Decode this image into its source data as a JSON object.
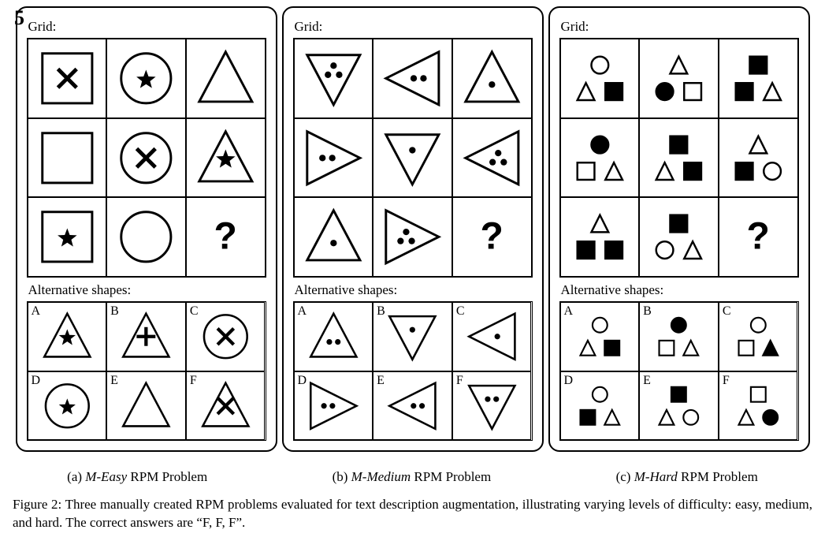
{
  "page_number": "5",
  "stroke_color": "#000000",
  "fill_color_shape": "none",
  "star_fill": "#000000",
  "dot_fill": "#000000",
  "stroke_width": 2,
  "labels": {
    "grid": "Grid:",
    "alternatives": "Alternative shapes:",
    "question_mark": "?"
  },
  "subcaptions": {
    "a": "(a)",
    "a_italic": "M-Easy",
    "a_rest": " RPM Problem",
    "b": "(b)",
    "b_italic": "M-Medium",
    "b_rest": " RPM Problem",
    "c": "(c)",
    "c_italic": "M-Hard",
    "c_rest": " RPM Problem"
  },
  "caption": "Figure 2: Three manually created RPM problems evaluated for text description augmentation, illustrating varying levels of difficulty: easy, medium, and hard. The correct answers are “F, F, F”.",
  "panel_a": {
    "grid": [
      {
        "shape": "square",
        "inner": "x"
      },
      {
        "shape": "circle",
        "inner": "star"
      },
      {
        "shape": "triangle_up",
        "inner": "none"
      },
      {
        "shape": "square",
        "inner": "none"
      },
      {
        "shape": "circle",
        "inner": "x"
      },
      {
        "shape": "triangle_up",
        "inner": "star"
      },
      {
        "shape": "square",
        "inner": "star"
      },
      {
        "shape": "circle",
        "inner": "none"
      },
      {
        "shape": "question"
      }
    ],
    "alternatives": [
      {
        "letter": "A",
        "shape": "triangle_up",
        "inner": "star"
      },
      {
        "letter": "B",
        "shape": "triangle_up",
        "inner": "plus"
      },
      {
        "letter": "C",
        "shape": "circle",
        "inner": "x"
      },
      {
        "letter": "D",
        "shape": "circle",
        "inner": "star"
      },
      {
        "letter": "E",
        "shape": "triangle_up",
        "inner": "none"
      },
      {
        "letter": "F",
        "shape": "triangle_up",
        "inner": "x"
      }
    ]
  },
  "panel_b": {
    "grid": [
      {
        "shape": "triangle_down",
        "dots": 3
      },
      {
        "shape": "triangle_left",
        "dots": 2
      },
      {
        "shape": "triangle_up",
        "dots": 1
      },
      {
        "shape": "triangle_right",
        "dots": 2
      },
      {
        "shape": "triangle_down",
        "dots": 1
      },
      {
        "shape": "triangle_left",
        "dots": 3
      },
      {
        "shape": "triangle_up",
        "dots": 1
      },
      {
        "shape": "triangle_right",
        "dots": 3
      },
      {
        "shape": "question"
      }
    ],
    "alternatives": [
      {
        "letter": "A",
        "shape": "triangle_up",
        "dots": 2
      },
      {
        "letter": "B",
        "shape": "triangle_down",
        "dots": 1
      },
      {
        "letter": "C",
        "shape": "triangle_left",
        "dots": 1
      },
      {
        "letter": "D",
        "shape": "triangle_right",
        "dots": 2
      },
      {
        "letter": "E",
        "shape": "triangle_left",
        "dots": 2
      },
      {
        "letter": "F",
        "shape": "triangle_down",
        "dots": 2
      }
    ]
  },
  "panel_c": {
    "grid": [
      [
        {
          "s": "circle",
          "f": false
        },
        {
          "s": "triangle",
          "f": false
        },
        {
          "s": "square",
          "f": true
        }
      ],
      [
        {
          "s": "triangle",
          "f": false
        },
        {
          "s": "circle",
          "f": true
        },
        {
          "s": "square",
          "f": false
        }
      ],
      [
        {
          "s": "square",
          "f": true
        },
        {
          "s": "square",
          "f": true
        },
        {
          "s": "triangle",
          "f": false
        }
      ],
      [
        {
          "s": "circle",
          "f": true
        },
        {
          "s": "square",
          "f": false
        },
        {
          "s": "triangle",
          "f": false
        }
      ],
      [
        {
          "s": "square",
          "f": true
        },
        {
          "s": "triangle",
          "f": false
        },
        {
          "s": "square",
          "f": true
        }
      ],
      [
        {
          "s": "triangle",
          "f": false
        },
        {
          "s": "square",
          "f": true
        },
        {
          "s": "circle",
          "f": false
        }
      ],
      [
        {
          "s": "triangle",
          "f": false
        },
        {
          "s": "square",
          "f": true
        },
        {
          "s": "square",
          "f": true
        }
      ],
      [
        {
          "s": "square",
          "f": true
        },
        {
          "s": "circle",
          "f": false
        },
        {
          "s": "triangle",
          "f": false
        }
      ],
      "question"
    ],
    "alternatives": [
      {
        "letter": "A",
        "items": [
          {
            "s": "circle",
            "f": false
          },
          {
            "s": "triangle",
            "f": false
          },
          {
            "s": "square",
            "f": true
          }
        ]
      },
      {
        "letter": "B",
        "items": [
          {
            "s": "circle",
            "f": true
          },
          {
            "s": "square",
            "f": false
          },
          {
            "s": "triangle",
            "f": false
          }
        ]
      },
      {
        "letter": "C",
        "items": [
          {
            "s": "circle",
            "f": false
          },
          {
            "s": "square",
            "f": false
          },
          {
            "s": "triangle",
            "f": true
          }
        ]
      },
      {
        "letter": "D",
        "items": [
          {
            "s": "circle",
            "f": false
          },
          {
            "s": "square",
            "f": true
          },
          {
            "s": "triangle",
            "f": false
          }
        ]
      },
      {
        "letter": "E",
        "items": [
          {
            "s": "square",
            "f": true
          },
          {
            "s": "triangle",
            "f": false
          },
          {
            "s": "circle",
            "f": false
          }
        ]
      },
      {
        "letter": "F",
        "items": [
          {
            "s": "square",
            "f": false
          },
          {
            "s": "triangle",
            "f": false
          },
          {
            "s": "circle",
            "f": true
          }
        ]
      }
    ]
  }
}
